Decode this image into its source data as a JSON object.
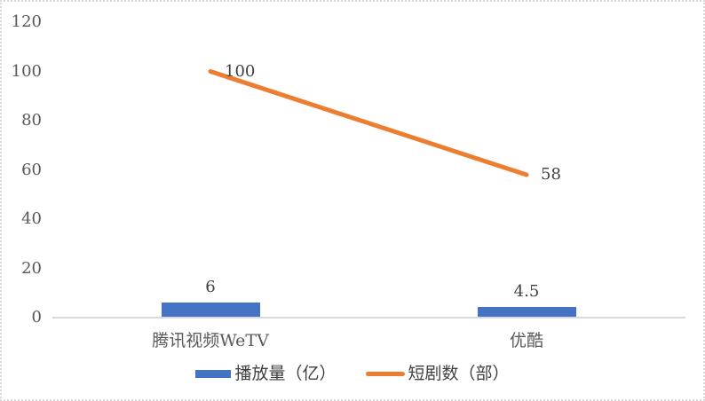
{
  "chart_data": {
    "type": "combo",
    "title": "",
    "categories": [
      "腾讯视频WeTV",
      "优酷"
    ],
    "series": [
      {
        "name": "播放量（亿）",
        "type": "bar",
        "color": "#4472C4",
        "values": [
          6,
          4.5
        ],
        "labels": [
          "6",
          "4.5"
        ]
      },
      {
        "name": "短剧数（部）",
        "type": "line",
        "color": "#ED7D31",
        "values": [
          100,
          58
        ],
        "labels": [
          "100",
          "58"
        ]
      }
    ],
    "yticks": [
      0,
      20,
      40,
      60,
      80,
      100,
      120
    ],
    "ylim": [
      0,
      120
    ],
    "xlabel": "",
    "ylabel": "",
    "grid": false,
    "legend_position": "bottom"
  },
  "legend": {
    "items": [
      {
        "label": "播放量（亿）",
        "color": "#4472C4",
        "swatch": "bar"
      },
      {
        "label": "短剧数（部）",
        "color": "#ED7D31",
        "swatch": "line"
      }
    ]
  },
  "colors": {
    "axis_line": "#d9d9d9",
    "tick_text": "#595959",
    "data_label_text": "#404040",
    "border": "#d9d9d9"
  }
}
